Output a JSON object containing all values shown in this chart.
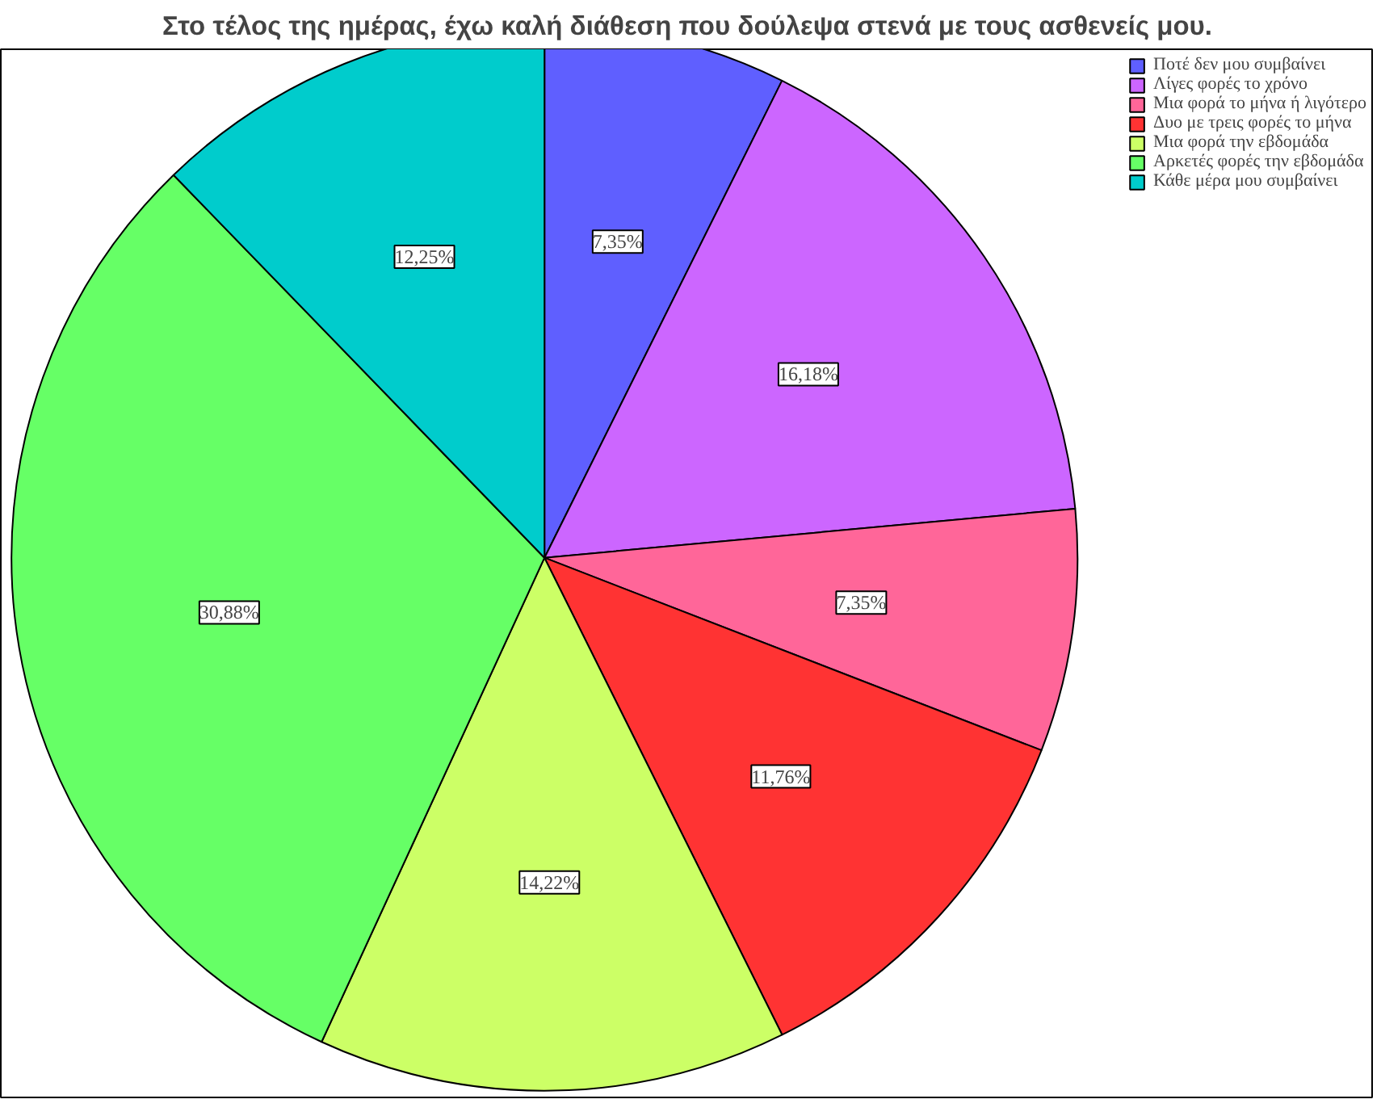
{
  "chart_data": {
    "type": "pie",
    "title": "Στο τέλος της ημέρας, έχω καλή διάθεση που δούλεψα στενά με τους ασθενείς μου.",
    "categories": [
      "Ποτέ δεν μου συμβαίνει",
      "Λίγες φορές το χρόνο",
      "Μια φορά το μήνα ή λιγότερο",
      "Δυο με τρεις φορές το μήνα",
      "Μια φορά την εβδομάδα",
      "Αρκετές φορές την εβδομάδα",
      "Κάθε μέρα μου συμβαίνει"
    ],
    "values": [
      7.35,
      16.18,
      7.35,
      11.76,
      14.22,
      30.88,
      12.25
    ],
    "colors": [
      "#5f5fff",
      "#cc66ff",
      "#ff6699",
      "#ff3333",
      "#ccff66",
      "#66ff66",
      "#00cccc"
    ],
    "value_labels": [
      "7,35%",
      "16,18%",
      "7,35%",
      "11,76%",
      "14,22%",
      "30,88%",
      "12,25%"
    ],
    "legend": "top right"
  }
}
